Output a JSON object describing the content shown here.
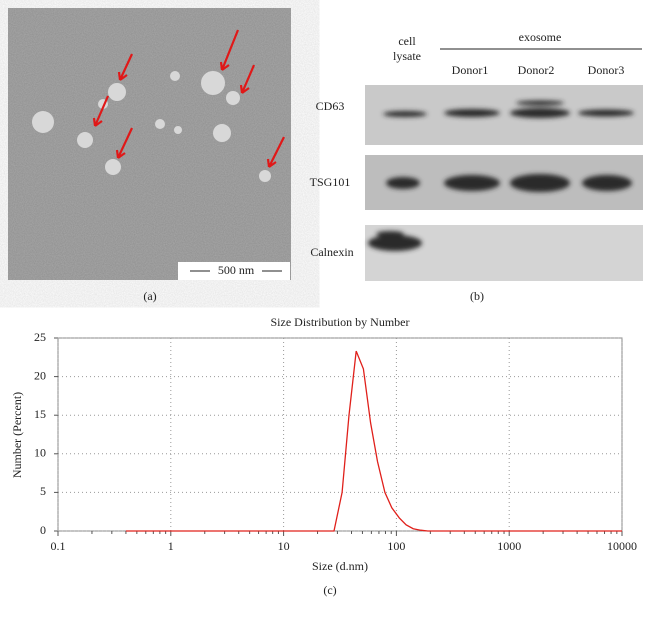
{
  "panel_a": {
    "scale_bar": "500 nm",
    "caption": "(a)"
  },
  "panel_b": {
    "cell_lysate": [
      "cell",
      "lysate"
    ],
    "exosome": "exosome",
    "donors": [
      "Donor1",
      "Donor2",
      "Donor3"
    ],
    "rows": [
      "CD63",
      "TSG101",
      "Calnexin"
    ],
    "caption": "(b)"
  },
  "chart_data": {
    "type": "line",
    "title": "Size Distribution by Number",
    "x_label": "Size (d.nm)",
    "y_label": "Number (Percent)",
    "x": [
      0.4,
      1,
      10,
      28,
      33,
      38,
      44,
      51,
      59,
      68,
      79,
      91,
      106,
      122,
      141,
      164,
      190,
      300,
      1000,
      10000
    ],
    "series": [
      {
        "color": "#e0201b",
        "values": [
          0,
          0,
          0,
          0,
          5,
          15,
          23.3,
          21,
          14,
          9,
          5,
          3,
          1.7,
          0.8,
          0.3,
          0.1,
          0,
          0,
          0,
          0
        ]
      }
    ],
    "xlim": [
      0.1,
      10000
    ],
    "ylim": [
      0,
      25
    ],
    "xticks": [
      0.1,
      1,
      10,
      100,
      1000,
      10000
    ],
    "yticks": [
      0,
      5,
      10,
      15,
      20,
      25
    ],
    "x_log": true,
    "grid": true,
    "caption": "(c)"
  }
}
